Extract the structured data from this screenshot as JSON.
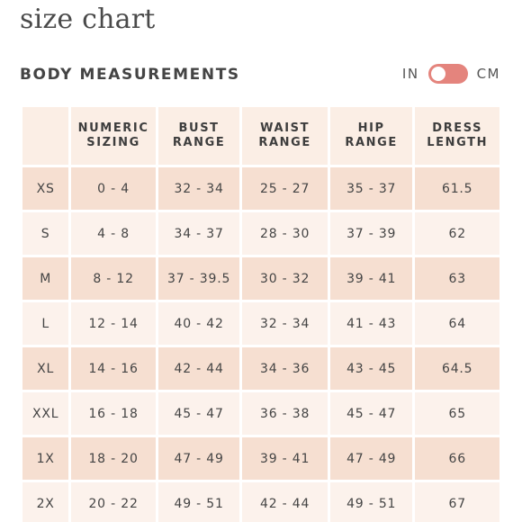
{
  "page": {
    "title": "size chart"
  },
  "section": {
    "heading": "BODY MEASUREMENTS"
  },
  "unit_toggle": {
    "left_label": "IN",
    "right_label": "CM",
    "selected": "IN",
    "accent_color": "#e4847d"
  },
  "colors": {
    "header_bg": "#fbeee5",
    "row_odd_bg": "#f6dfd1",
    "row_even_bg": "#fcf2ec"
  },
  "table": {
    "headers": [
      {
        "line1": "",
        "line2": ""
      },
      {
        "line1": "NUMERIC",
        "line2": "SIZING"
      },
      {
        "line1": "BUST",
        "line2": "RANGE"
      },
      {
        "line1": "WAIST",
        "line2": "RANGE"
      },
      {
        "line1": "HIP",
        "line2": "RANGE"
      },
      {
        "line1": "DRESS",
        "line2": "LENGTH"
      }
    ],
    "rows": [
      [
        "XS",
        "0 - 4",
        "32 - 34",
        "25 - 27",
        "35 - 37",
        "61.5"
      ],
      [
        "S",
        "4 - 8",
        "34 - 37",
        "28 - 30",
        "37 - 39",
        "62"
      ],
      [
        "M",
        "8 - 12",
        "37 - 39.5",
        "30 - 32",
        "39 - 41",
        "63"
      ],
      [
        "L",
        "12 - 14",
        "40 - 42",
        "32 - 34",
        "41 - 43",
        "64"
      ],
      [
        "XL",
        "14 - 16",
        "42 - 44",
        "34 - 36",
        "43 - 45",
        "64.5"
      ],
      [
        "XXL",
        "16 - 18",
        "45 - 47",
        "36 - 38",
        "45 - 47",
        "65"
      ],
      [
        "1X",
        "18 - 20",
        "47 - 49",
        "39 - 41",
        "47 - 49",
        "66"
      ],
      [
        "2X",
        "20 - 22",
        "49 - 51",
        "42 - 44",
        "49 - 51",
        "67"
      ]
    ]
  }
}
